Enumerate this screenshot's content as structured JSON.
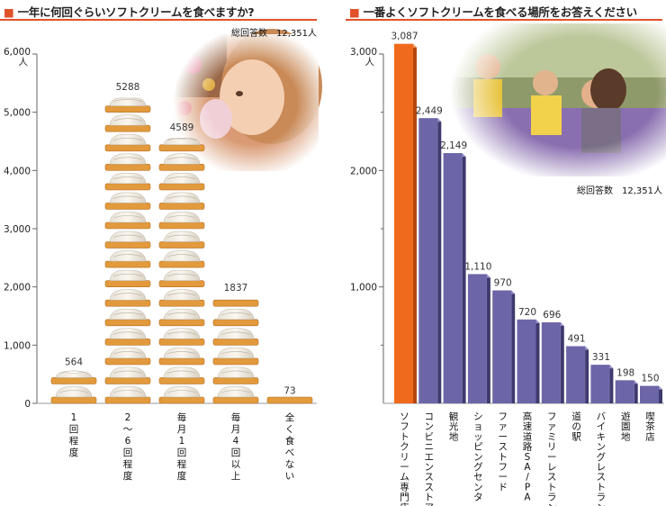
{
  "left": {
    "title": "一年に何回ぐらいソフトクリームを食べますか?",
    "total_label": "総回答数　12,351人",
    "unit": "人",
    "photo": "girl-eating-ice-cream-photo",
    "icon": "soft-serve-cone-icon",
    "chart_data": {
      "type": "bar",
      "title": "一年に何回ぐらいソフトクリームを食べますか?",
      "categories": [
        "1回程度",
        "2~6回程度",
        "毎月1回程度",
        "毎月4回以上",
        "全く食べない"
      ],
      "values": [
        564,
        5288,
        4589,
        1837,
        73
      ],
      "value_labels": [
        "564",
        "5288",
        "4589",
        "1837",
        "73"
      ],
      "ylim": [
        0,
        6000
      ],
      "yticks": [
        "0",
        "1,000",
        "2,000",
        "3,000",
        "4,000",
        "5,000",
        "6,000"
      ],
      "ytick_values": [
        0,
        1000,
        2000,
        3000,
        4000,
        5000,
        6000
      ],
      "ylabel": "人",
      "bar_style": "stacked soft-serve cone pictograms"
    }
  },
  "right": {
    "title": "一番よくソフトクリームを食べる場所をお答えください",
    "total_label": "総回答数　12,351人",
    "unit": "人",
    "photo": "family-eating-ice-cream-photo",
    "chart_data": {
      "type": "bar",
      "title": "一番よくソフトクリームを食べる場所をお答えください",
      "categories": [
        "ソフトクリーム専門店",
        "コンビニエンスストア",
        "観光地",
        "ショッピングセンター",
        "ファーストフード",
        "高速道路SA/PA",
        "ファミリーレストラン",
        "道の駅",
        "バイキングレストラン",
        "遊園地",
        "喫茶店"
      ],
      "values": [
        3087,
        2449,
        2149,
        1110,
        970,
        720,
        696,
        491,
        331,
        198,
        150
      ],
      "value_labels": [
        "3,087",
        "2,449",
        "2,149",
        "1,110",
        "970",
        "720",
        "696",
        "491",
        "331",
        "198",
        "150"
      ],
      "ylim": [
        0,
        3000
      ],
      "yticks": [
        "1,000",
        "2,000",
        "3,000"
      ],
      "ytick_values": [
        1000,
        2000,
        3000
      ],
      "ylabel": "人",
      "colors": {
        "highlight": "#f06a1e",
        "bars": "#6c66a8"
      }
    }
  }
}
